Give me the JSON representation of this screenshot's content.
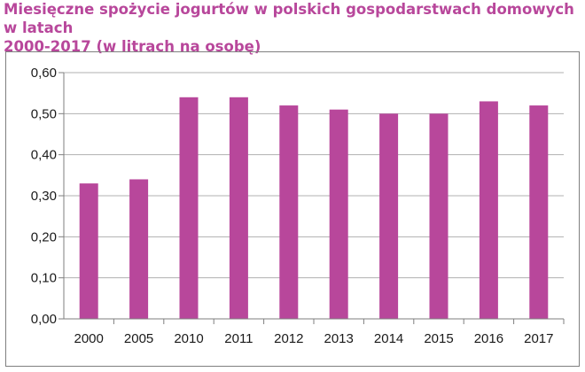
{
  "chart_data": {
    "type": "bar",
    "title_line1": "Miesięczne spożycie jogurtów w polskich gospodarstwach domowych w latach",
    "title_line2": "2000-2017 (w litrach na osobę)",
    "categories": [
      "2000",
      "2005",
      "2010",
      "2011",
      "2012",
      "2013",
      "2014",
      "2015",
      "2016",
      "2017"
    ],
    "values": [
      0.33,
      0.34,
      0.54,
      0.54,
      0.52,
      0.51,
      0.5,
      0.5,
      0.53,
      0.52
    ],
    "y_ticks": [
      "0,00",
      "0,10",
      "0,20",
      "0,30",
      "0,40",
      "0,50",
      "0,60"
    ],
    "y_tick_values": [
      0,
      0.1,
      0.2,
      0.3,
      0.4,
      0.5,
      0.6
    ],
    "ylim": [
      0,
      0.6
    ],
    "grid": true,
    "bar_color": "#b8479b",
    "grid_color": "#b0b0b0",
    "title_color": "#b8479b"
  }
}
